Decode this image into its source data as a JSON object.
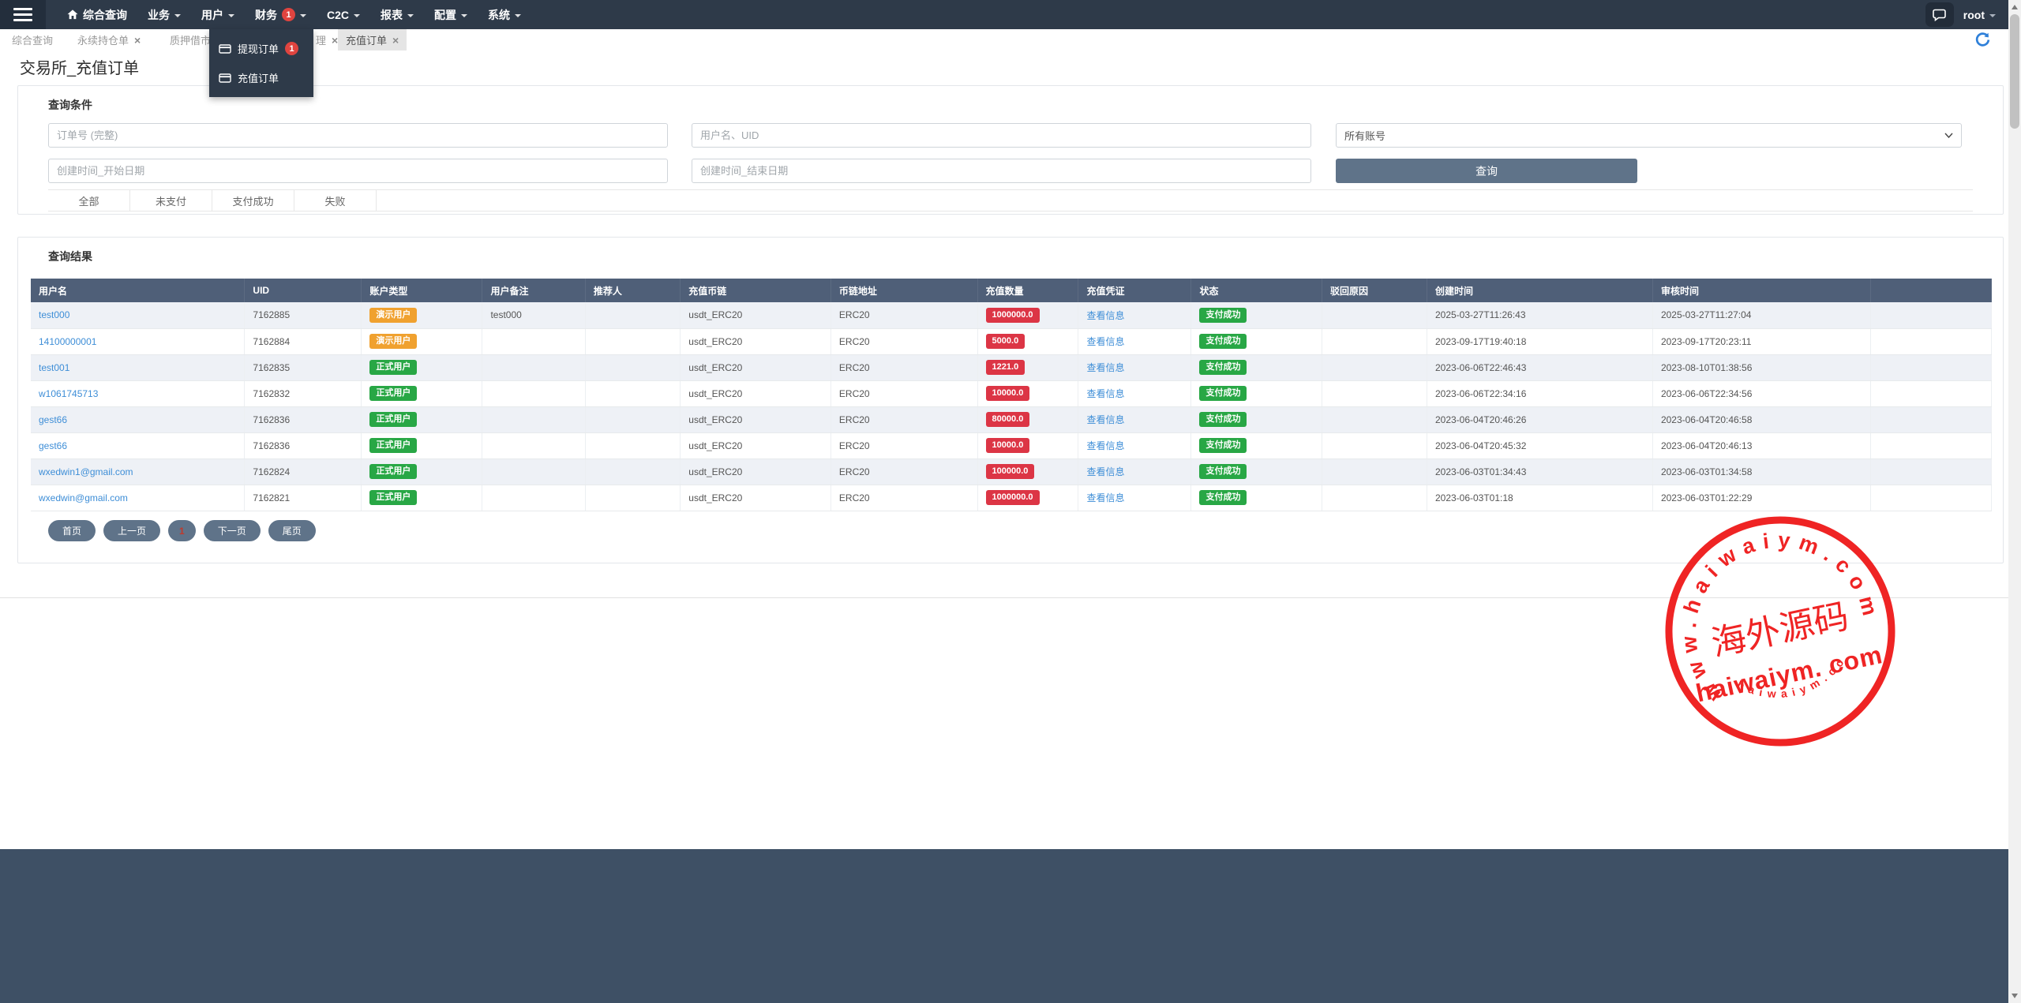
{
  "colors": {
    "navbar_bg": "#2e3a49",
    "header_bg": "#4f5f78",
    "accent_slate": "#5f7389",
    "badge_red": "#dc3545",
    "badge_orange": "#f0a12f",
    "badge_green": "#28a745",
    "link_blue": "#3e8ed7",
    "stamp_red": "#ee1414",
    "footer_bg": "#3e5065"
  },
  "navbar": {
    "menu": [
      {
        "label": "综合查询",
        "home_icon": true,
        "caret": false,
        "badge": ""
      },
      {
        "label": "业务",
        "home_icon": false,
        "caret": true,
        "badge": ""
      },
      {
        "label": "用户",
        "home_icon": false,
        "caret": true,
        "badge": ""
      },
      {
        "label": "财务",
        "home_icon": false,
        "caret": true,
        "badge": "1"
      },
      {
        "label": "C2C",
        "home_icon": false,
        "caret": true,
        "badge": ""
      },
      {
        "label": "报表",
        "home_icon": false,
        "caret": true,
        "badge": ""
      },
      {
        "label": "配置",
        "home_icon": false,
        "caret": true,
        "badge": ""
      },
      {
        "label": "系统",
        "home_icon": false,
        "caret": true,
        "badge": ""
      }
    ],
    "user": "root"
  },
  "dropdown": {
    "items": [
      {
        "label": "提现订单",
        "badge": "1"
      },
      {
        "label": "充值订单",
        "badge": ""
      }
    ]
  },
  "tabs": [
    {
      "label": "综合查询",
      "closable": false,
      "active": false
    },
    {
      "label": "永续持仓单",
      "closable": true,
      "active": false
    },
    {
      "label": "质押借市",
      "closable": true,
      "active": false
    },
    {
      "label": "理",
      "closable": true,
      "active": false
    },
    {
      "label": "充值订单",
      "closable": true,
      "active": true
    }
  ],
  "page": {
    "title": "交易所_充值订单"
  },
  "query_panel": {
    "title": "查询条件",
    "order_no_placeholder": "订单号 (完整)",
    "user_placeholder": "用户名、UID",
    "account_select_value": "所有账号",
    "start_date_placeholder": "创建时间_开始日期",
    "end_date_placeholder": "创建时间_结束日期",
    "search_button": "查询",
    "filters": [
      "全部",
      "未支付",
      "支付成功",
      "失败"
    ]
  },
  "results_panel": {
    "title": "查询结果",
    "columns": [
      "用户名",
      "UID",
      "账户类型",
      "用户备注",
      "推荐人",
      "充值币链",
      "币链地址",
      "充值数量",
      "充值凭证",
      "状态",
      "驳回原因",
      "创建时间",
      "审核时间",
      ""
    ],
    "rows": [
      {
        "username": "test000",
        "uid": "7162885",
        "account_type": "演示用户",
        "account_variant": "demo",
        "remark": "test000",
        "referrer": "",
        "coin": "usdt_ERC20",
        "chain": "ERC20",
        "amount": "1000000.0",
        "voucher": "查看信息",
        "status": "支付成功",
        "reject_reason": "",
        "created_at": "2025-03-27T11:26:43",
        "audited_at": "2025-03-27T11:27:04"
      },
      {
        "username": "14100000001",
        "uid": "7162884",
        "account_type": "演示用户",
        "account_variant": "demo",
        "remark": "",
        "referrer": "",
        "coin": "usdt_ERC20",
        "chain": "ERC20",
        "amount": "5000.0",
        "voucher": "查看信息",
        "status": "支付成功",
        "reject_reason": "",
        "created_at": "2023-09-17T19:40:18",
        "audited_at": "2023-09-17T20:23:11"
      },
      {
        "username": "test001",
        "uid": "7162835",
        "account_type": "正式用户",
        "account_variant": "formal",
        "remark": "",
        "referrer": "",
        "coin": "usdt_ERC20",
        "chain": "ERC20",
        "amount": "1221.0",
        "voucher": "查看信息",
        "status": "支付成功",
        "reject_reason": "",
        "created_at": "2023-06-06T22:46:43",
        "audited_at": "2023-08-10T01:38:56"
      },
      {
        "username": "w1061745713",
        "uid": "7162832",
        "account_type": "正式用户",
        "account_variant": "formal",
        "remark": "",
        "referrer": "",
        "coin": "usdt_ERC20",
        "chain": "ERC20",
        "amount": "10000.0",
        "voucher": "查看信息",
        "status": "支付成功",
        "reject_reason": "",
        "created_at": "2023-06-06T22:34:16",
        "audited_at": "2023-06-06T22:34:56"
      },
      {
        "username": "gest66",
        "uid": "7162836",
        "account_type": "正式用户",
        "account_variant": "formal",
        "remark": "",
        "referrer": "",
        "coin": "usdt_ERC20",
        "chain": "ERC20",
        "amount": "80000.0",
        "voucher": "查看信息",
        "status": "支付成功",
        "reject_reason": "",
        "created_at": "2023-06-04T20:46:26",
        "audited_at": "2023-06-04T20:46:58"
      },
      {
        "username": "gest66",
        "uid": "7162836",
        "account_type": "正式用户",
        "account_variant": "formal",
        "remark": "",
        "referrer": "",
        "coin": "usdt_ERC20",
        "chain": "ERC20",
        "amount": "10000.0",
        "voucher": "查看信息",
        "status": "支付成功",
        "reject_reason": "",
        "created_at": "2023-06-04T20:45:32",
        "audited_at": "2023-06-04T20:46:13"
      },
      {
        "username": "wxedwin1@gmail.com",
        "uid": "7162824",
        "account_type": "正式用户",
        "account_variant": "formal",
        "remark": "",
        "referrer": "",
        "coin": "usdt_ERC20",
        "chain": "ERC20",
        "amount": "100000.0",
        "voucher": "查看信息",
        "status": "支付成功",
        "reject_reason": "",
        "created_at": "2023-06-03T01:34:43",
        "audited_at": "2023-06-03T01:34:58"
      },
      {
        "username": "wxedwin@gmail.com",
        "uid": "7162821",
        "account_type": "正式用户",
        "account_variant": "formal",
        "remark": "",
        "referrer": "",
        "coin": "usdt_ERC20",
        "chain": "ERC20",
        "amount": "1000000.0",
        "voucher": "查看信息",
        "status": "支付成功",
        "reject_reason": "",
        "created_at": "2023-06-03T01:18",
        "audited_at": "2023-06-03T01:22:29"
      }
    ]
  },
  "pagination": {
    "first": "首页",
    "prev": "上一页",
    "current": "1",
    "next": "下一页",
    "last": "尾页"
  },
  "watermark": {
    "arc_text": "www.haiwaiym.com",
    "center_cn": "海外源码",
    "center_en": "haiwaiym. com",
    "bottom_arc": "haiwaiym.com"
  }
}
